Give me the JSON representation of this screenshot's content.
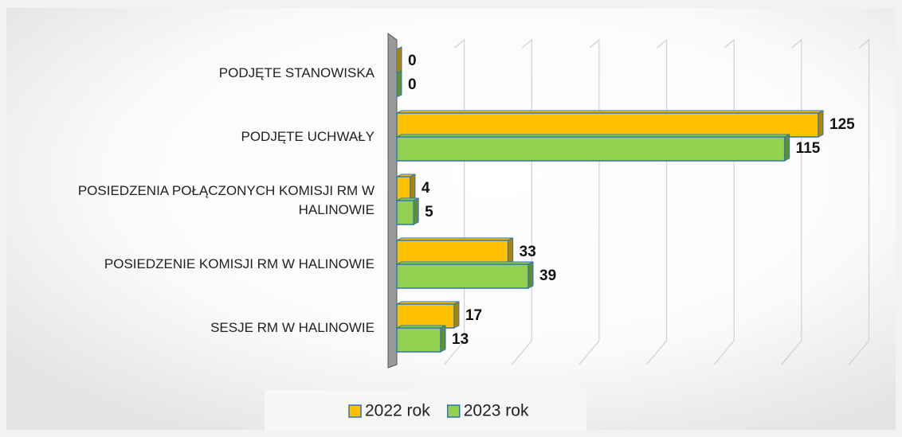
{
  "chart_data": {
    "type": "bar",
    "orientation": "horizontal",
    "categories": [
      "PODJĘTE STANOWISKA",
      "PODJĘTE UCHWAŁY",
      "POSIEDZENIA POŁĄCZONYCH KOMISJI RM W HALINOWIE",
      "POSIEDZENIE KOMISJI RM W HALINOWIE",
      "SESJE RM W HALINOWIE"
    ],
    "series": [
      {
        "name": "2022 rok",
        "color": "#ffc000",
        "values": [
          0,
          125,
          4,
          33,
          17
        ]
      },
      {
        "name": "2023 rok",
        "color": "#92d050",
        "values": [
          0,
          115,
          5,
          39,
          13
        ]
      }
    ],
    "xlim": [
      0,
      140
    ],
    "xticks": [
      0,
      20,
      40,
      60,
      80,
      100,
      120,
      140
    ],
    "grid": true,
    "legend": "bottom"
  }
}
